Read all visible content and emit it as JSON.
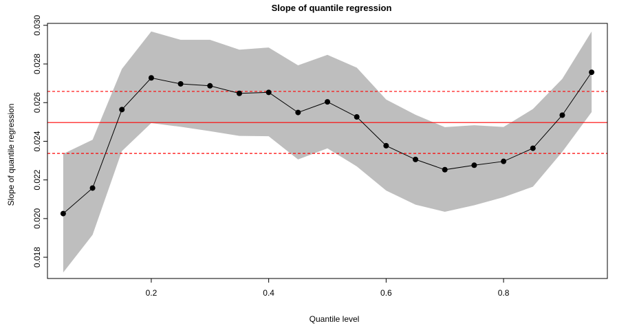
{
  "chart_data": {
    "type": "line",
    "title": "Slope of quantile regression",
    "xlabel": "Quantile level",
    "ylabel": "Slope of quantile regression",
    "xlim": [
      0.0232,
      0.9768
    ],
    "ylim": [
      0.0169,
      0.0301
    ],
    "x_ticks": [
      0.2,
      0.4,
      0.6,
      0.8
    ],
    "x_tick_labels": [
      "0.2",
      "0.4",
      "0.6",
      "0.8"
    ],
    "y_ticks": [
      0.018,
      0.02,
      0.022,
      0.024,
      0.026,
      0.028,
      0.03
    ],
    "y_tick_labels": [
      "0.018",
      "0.020",
      "0.022",
      "0.024",
      "0.026",
      "0.028",
      "0.030"
    ],
    "grid": false,
    "series": [
      {
        "type": "line-points",
        "color": "#000000",
        "x": [
          0.05,
          0.1,
          0.15,
          0.2,
          0.25,
          0.3,
          0.35,
          0.4,
          0.45,
          0.5,
          0.55,
          0.6,
          0.65,
          0.7,
          0.75,
          0.8,
          0.85,
          0.9,
          0.95
        ],
        "values": [
          0.02026,
          0.02158,
          0.02564,
          0.02728,
          0.02697,
          0.02687,
          0.02648,
          0.02653,
          0.02549,
          0.02604,
          0.02526,
          0.02377,
          0.02306,
          0.02253,
          0.02276,
          0.02296,
          0.02364,
          0.02535,
          0.02757
        ]
      }
    ],
    "band": {
      "color": "#bebebe",
      "x": [
        0.05,
        0.1,
        0.15,
        0.2,
        0.25,
        0.3,
        0.35,
        0.4,
        0.45,
        0.5,
        0.55,
        0.6,
        0.65,
        0.7,
        0.75,
        0.8,
        0.85,
        0.9,
        0.95
      ],
      "upper": [
        0.02335,
        0.02408,
        0.02774,
        0.02968,
        0.02925,
        0.02925,
        0.02874,
        0.02885,
        0.02793,
        0.02847,
        0.02781,
        0.02616,
        0.02537,
        0.02473,
        0.02483,
        0.02474,
        0.02567,
        0.02723,
        0.02968
      ],
      "lower": [
        0.01721,
        0.01916,
        0.02349,
        0.02494,
        0.02475,
        0.02452,
        0.02428,
        0.02426,
        0.02306,
        0.02363,
        0.0227,
        0.02145,
        0.02072,
        0.02035,
        0.02069,
        0.02111,
        0.02165,
        0.02345,
        0.02551
      ]
    },
    "hlines": [
      {
        "y": 0.02497,
        "color": "#ff0000",
        "style": "solid"
      },
      {
        "y": 0.02658,
        "color": "#ff0000",
        "style": "dashed"
      },
      {
        "y": 0.02337,
        "color": "#ff0000",
        "style": "dashed"
      }
    ]
  }
}
